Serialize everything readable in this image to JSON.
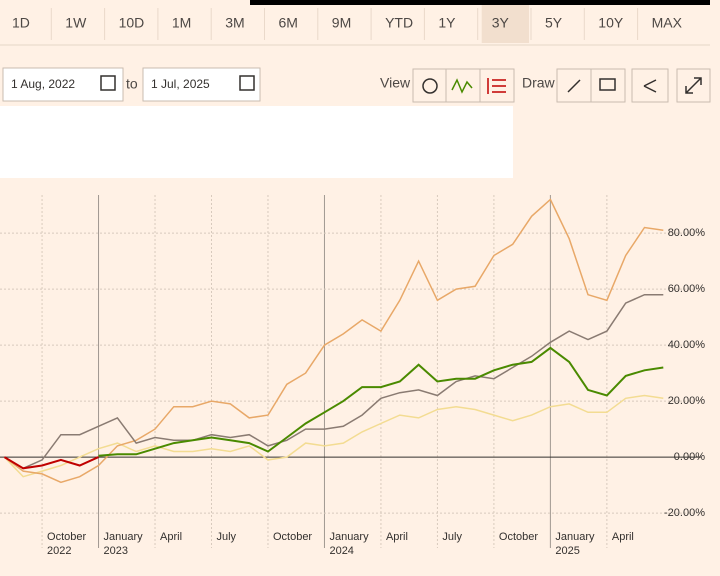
{
  "ranges": [
    "1D",
    "1W",
    "10D",
    "1M",
    "3M",
    "6M",
    "9M",
    "YTD",
    "1Y",
    "3Y",
    "5Y",
    "10Y",
    "MAX"
  ],
  "selected": "3Y",
  "date_from": "1 Aug, 2022",
  "to": "to",
  "date_to": "1 Jul, 2025",
  "view_label": "View",
  "draw_label": "Draw",
  "chart_data": {
    "type": "line",
    "x": [
      "2022-08",
      "2022-09",
      "2022-10",
      "2022-11",
      "2022-12",
      "2023-01",
      "2023-02",
      "2023-03",
      "2023-04",
      "2023-05",
      "2023-06",
      "2023-07",
      "2023-08",
      "2023-09",
      "2023-10",
      "2023-11",
      "2023-12",
      "2024-01",
      "2024-02",
      "2024-03",
      "2024-04",
      "2024-05",
      "2024-06",
      "2024-07",
      "2024-08",
      "2024-09",
      "2024-10",
      "2024-11",
      "2024-12",
      "2025-01",
      "2025-02",
      "2025-03",
      "2025-04",
      "2025-05",
      "2025-06",
      "2025-07"
    ],
    "series": [
      {
        "color": "#f3dc92",
        "values": [
          0,
          -7,
          -5,
          -3,
          0,
          3,
          5,
          2,
          4,
          2,
          2,
          3,
          2,
          4,
          -1,
          0,
          5,
          4,
          5,
          9,
          12,
          15,
          14,
          17,
          18,
          17,
          15,
          13,
          15,
          18,
          19,
          16,
          16,
          21,
          22,
          21
        ]
      },
      {
        "color": "#e8a868",
        "values": [
          0,
          -5,
          -6,
          -9,
          -7,
          -3,
          4,
          6,
          10,
          18,
          18,
          20,
          19,
          14,
          15,
          26,
          30,
          40,
          44,
          49,
          45,
          56,
          70,
          56,
          60,
          61,
          72,
          76,
          86,
          92,
          78,
          58,
          56,
          72,
          82,
          81
        ]
      },
      {
        "color": "#8a7b72",
        "values": [
          0,
          -4,
          -1,
          8,
          8,
          11,
          14,
          5,
          7,
          6,
          6,
          8,
          7,
          8,
          4,
          6,
          10,
          10,
          11,
          15,
          21,
          23,
          24,
          22,
          27,
          29,
          28,
          32,
          36,
          41,
          45,
          42,
          45,
          55,
          58,
          58
        ]
      },
      {
        "color": "#4a8a00",
        "values": [
          null,
          null,
          null,
          null,
          null,
          0.5,
          1,
          1,
          3,
          5,
          6,
          7,
          6,
          5,
          2,
          7,
          12,
          16,
          20,
          25,
          25,
          27,
          33,
          27,
          28,
          28,
          31,
          33,
          34,
          39,
          34,
          24,
          22,
          29,
          31,
          32
        ]
      },
      {
        "color": "#c00000",
        "values": [
          0,
          -4,
          -3,
          -1,
          -3,
          0,
          null,
          null,
          null,
          null,
          null,
          null,
          null,
          null,
          null,
          null,
          null,
          null,
          null,
          null,
          null,
          null,
          null,
          null,
          null,
          null,
          null,
          null,
          null,
          null,
          null,
          null,
          null,
          null,
          null,
          null
        ]
      }
    ],
    "xlim": [
      "2022-08",
      "2025-09"
    ],
    "xticks": [
      {
        "value": "2022-10",
        "label": "October"
      },
      {
        "value": "2023-01",
        "label": "January"
      },
      {
        "value": "2023-04",
        "label": "April"
      },
      {
        "value": "2023-07",
        "label": "July"
      },
      {
        "value": "2023-10",
        "label": "October"
      },
      {
        "value": "2024-01",
        "label": "January"
      },
      {
        "value": "2024-04",
        "label": "April"
      },
      {
        "value": "2024-07",
        "label": "July"
      },
      {
        "value": "2024-10",
        "label": "October"
      },
      {
        "value": "2025-01",
        "label": "January"
      },
      {
        "value": "2025-04",
        "label": "April"
      }
    ],
    "years": [
      {
        "value": "2022-10",
        "label": "2022"
      },
      {
        "value": "2023-01",
        "label": "2023"
      },
      {
        "value": "2024-01",
        "label": "2024"
      },
      {
        "value": "2025-01",
        "label": "2025"
      }
    ],
    "ylim": [
      -29.6,
      93.6
    ],
    "yticks": [
      {
        "value": -20,
        "label": "-20.00%"
      },
      {
        "value": 0,
        "label": "0.00%"
      },
      {
        "value": 20,
        "label": "20.00%"
      },
      {
        "value": 40,
        "label": "40.00%"
      },
      {
        "value": 60,
        "label": "60.00%"
      },
      {
        "value": 80,
        "label": "80.00%"
      }
    ],
    "grid": true
  }
}
